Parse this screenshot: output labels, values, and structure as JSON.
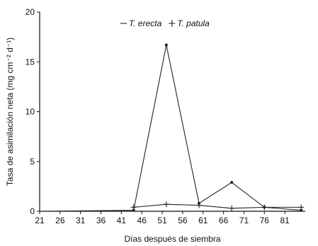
{
  "chart_data": {
    "type": "line",
    "title": "",
    "xlabel": "Días después de siembra",
    "ylabel": "Tasa de asimilación neta  (mg cm⁻² d⁻¹)",
    "xlim": [
      21,
      86
    ],
    "ylim": [
      0,
      20
    ],
    "x_ticks": [
      21,
      26,
      31,
      36,
      41,
      46,
      51,
      56,
      61,
      66,
      71,
      76,
      81
    ],
    "x_tick_labels": [
      "21",
      "26",
      "31",
      "36",
      "41",
      "46",
      "51",
      "56",
      "61",
      "66",
      "71",
      "76",
      "81"
    ],
    "y_ticks": [
      0,
      5,
      10,
      15,
      20
    ],
    "y_tick_labels": [
      "0",
      "5",
      "10",
      "15",
      "20"
    ],
    "grid": false,
    "legend_position": "top-center",
    "series": [
      {
        "name": "T. erecta",
        "marker": "dot",
        "color": "#222222",
        "x": [
          21,
          44,
          52,
          60,
          68,
          76,
          85
        ],
        "y": [
          0,
          0.1,
          16.7,
          0.8,
          2.9,
          0.4,
          0.1
        ]
      },
      {
        "name": "T. patula",
        "marker": "plus",
        "color": "#222222",
        "x": [
          44,
          52,
          60,
          68,
          76,
          85
        ],
        "y": [
          0.4,
          0.7,
          0.6,
          0.3,
          0.4,
          0.4
        ]
      }
    ]
  }
}
